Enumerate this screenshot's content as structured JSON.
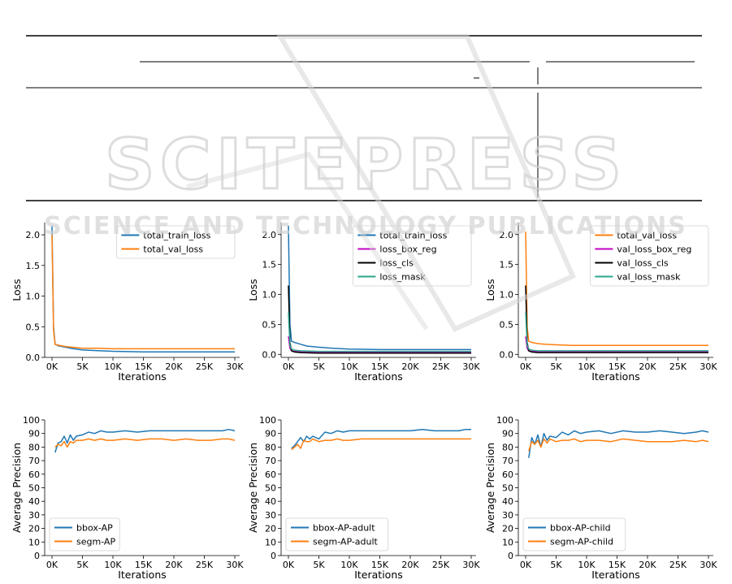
{
  "watermark": {
    "logo_text": "SCITEPRESS",
    "tagline": "SCIENCE AND TECHNOLOGY PUBLICATIONS"
  },
  "colors": {
    "blue": "#1f77b4",
    "orange": "#ff7f0e",
    "magenta": "#c000c0",
    "black": "#000000",
    "teal": "#2ca58d",
    "watermark": "#cfcfcf"
  },
  "chart_data": [
    {
      "type": "line",
      "xlabel": "Iterations",
      "ylabel": "Loss",
      "xlim": [
        -1200,
        30800
      ],
      "ylim": [
        0,
        2.2
      ],
      "xticks": [
        0,
        5000,
        10000,
        15000,
        20000,
        25000,
        30000
      ],
      "xtick_labels": [
        "0K",
        "5K",
        "10K",
        "15K",
        "20K",
        "25K",
        "30K"
      ],
      "yticks": [
        0.0,
        0.5,
        1.0,
        1.5,
        2.0
      ],
      "ytick_labels": [
        "0.0",
        "0.5",
        "1.0",
        "1.5",
        "2.0"
      ],
      "legend": "top-right",
      "series": [
        {
          "name": "total_train_loss",
          "color": "#1f77b4",
          "x": [
            0,
            250,
            500,
            1000,
            2000,
            3000,
            5000,
            7500,
            10000,
            15000,
            20000,
            25000,
            30000
          ],
          "y": [
            2.15,
            0.5,
            0.22,
            0.19,
            0.17,
            0.15,
            0.12,
            0.11,
            0.1,
            0.09,
            0.09,
            0.09,
            0.09
          ]
        },
        {
          "name": "total_val_loss",
          "color": "#ff7f0e",
          "x": [
            0,
            250,
            500,
            1000,
            2000,
            3000,
            5000,
            7500,
            10000,
            15000,
            20000,
            25000,
            30000
          ],
          "y": [
            2.0,
            0.45,
            0.21,
            0.2,
            0.18,
            0.17,
            0.15,
            0.15,
            0.14,
            0.14,
            0.14,
            0.14,
            0.14
          ]
        }
      ]
    },
    {
      "type": "line",
      "xlabel": "Iterations",
      "ylabel": "Loss",
      "xlim": [
        -1200,
        30800
      ],
      "ylim": [
        -0.05,
        2.2
      ],
      "xticks": [
        0,
        5000,
        10000,
        15000,
        20000,
        25000,
        30000
      ],
      "xtick_labels": [
        "0K",
        "5K",
        "10K",
        "15K",
        "20K",
        "25K",
        "30K"
      ],
      "yticks": [
        0.0,
        0.5,
        1.0,
        1.5,
        2.0
      ],
      "ytick_labels": [
        "0.0",
        "0.5",
        "1.0",
        "1.5",
        "2.0"
      ],
      "legend": "top-right",
      "series": [
        {
          "name": "total_train_loss",
          "color": "#1f77b4",
          "x": [
            0,
            250,
            500,
            1000,
            2000,
            3000,
            5000,
            7500,
            10000,
            15000,
            20000,
            25000,
            30000
          ],
          "y": [
            2.15,
            0.5,
            0.22,
            0.2,
            0.17,
            0.14,
            0.12,
            0.1,
            0.09,
            0.08,
            0.08,
            0.08,
            0.08
          ]
        },
        {
          "name": "loss_box_reg",
          "color": "#c000c0",
          "x": [
            0,
            250,
            500,
            1000,
            2000,
            5000,
            10000,
            20000,
            30000
          ],
          "y": [
            0.3,
            0.1,
            0.06,
            0.05,
            0.04,
            0.04,
            0.04,
            0.04,
            0.04
          ]
        },
        {
          "name": "loss_cls",
          "color": "#000000",
          "x": [
            0,
            250,
            500,
            1000,
            2000,
            5000,
            10000,
            20000,
            30000
          ],
          "y": [
            1.15,
            0.2,
            0.06,
            0.04,
            0.03,
            0.02,
            0.02,
            0.02,
            0.02
          ]
        },
        {
          "name": "loss_mask",
          "color": "#2ca58d",
          "x": [
            0,
            250,
            500,
            1000,
            2000,
            5000,
            10000,
            20000,
            30000
          ],
          "y": [
            0.7,
            0.15,
            0.09,
            0.07,
            0.06,
            0.05,
            0.05,
            0.05,
            0.05
          ]
        }
      ]
    },
    {
      "type": "line",
      "xlabel": "Iterations",
      "ylabel": "Loss",
      "xlim": [
        -1200,
        30800
      ],
      "ylim": [
        -0.05,
        2.2
      ],
      "xticks": [
        0,
        5000,
        10000,
        15000,
        20000,
        25000,
        30000
      ],
      "xtick_labels": [
        "0K",
        "5K",
        "10K",
        "15K",
        "20K",
        "25K",
        "30K"
      ],
      "yticks": [
        0.0,
        0.5,
        1.0,
        1.5,
        2.0
      ],
      "ytick_labels": [
        "0.0",
        "0.5",
        "1.0",
        "1.5",
        "2.0"
      ],
      "legend": "top-right",
      "series": [
        {
          "name": "total_val_loss",
          "color": "#ff7f0e",
          "x": [
            0,
            250,
            500,
            1000,
            2000,
            3000,
            5000,
            7500,
            10000,
            15000,
            20000,
            25000,
            30000
          ],
          "y": [
            2.05,
            0.45,
            0.22,
            0.2,
            0.18,
            0.17,
            0.16,
            0.15,
            0.15,
            0.15,
            0.15,
            0.15,
            0.15
          ]
        },
        {
          "name": "val_loss_box_reg",
          "color": "#c000c0",
          "x": [
            0,
            250,
            500,
            1000,
            2000,
            5000,
            10000,
            20000,
            30000
          ],
          "y": [
            0.3,
            0.1,
            0.06,
            0.05,
            0.05,
            0.05,
            0.05,
            0.05,
            0.05
          ]
        },
        {
          "name": "val_loss_cls",
          "color": "#000000",
          "x": [
            0,
            250,
            500,
            1000,
            2000,
            5000,
            10000,
            20000,
            30000
          ],
          "y": [
            1.15,
            0.2,
            0.06,
            0.04,
            0.03,
            0.03,
            0.03,
            0.03,
            0.03
          ]
        },
        {
          "name": "val_loss_mask",
          "color": "#2ca58d",
          "x": [
            0,
            250,
            500,
            1000,
            2000,
            5000,
            10000,
            20000,
            30000
          ],
          "y": [
            0.7,
            0.15,
            0.09,
            0.07,
            0.06,
            0.06,
            0.06,
            0.06,
            0.06
          ]
        }
      ]
    },
    {
      "type": "line",
      "xlabel": "Iterations",
      "ylabel": "Average Precision",
      "xlim": [
        -1200,
        30800
      ],
      "ylim": [
        0,
        100
      ],
      "xticks": [
        0,
        5000,
        10000,
        15000,
        20000,
        25000,
        30000
      ],
      "xtick_labels": [
        "0K",
        "5K",
        "10K",
        "15K",
        "20K",
        "25K",
        "30K"
      ],
      "yticks": [
        0,
        10,
        20,
        30,
        40,
        50,
        60,
        70,
        80,
        90,
        100
      ],
      "ytick_labels": [
        "0",
        "10",
        "20",
        "30",
        "40",
        "50",
        "60",
        "70",
        "80",
        "90",
        "100"
      ],
      "legend": "bottom-left",
      "series": [
        {
          "name": "bbox-AP",
          "color": "#1f77b4",
          "x": [
            500,
            1000,
            1500,
            2000,
            2500,
            3000,
            3500,
            4000,
            5000,
            6000,
            7000,
            8000,
            9000,
            10000,
            12000,
            14000,
            16000,
            18000,
            20000,
            22000,
            24000,
            26000,
            28000,
            29000,
            30000
          ],
          "y": [
            76,
            83,
            84,
            88,
            83,
            89,
            85,
            88,
            89,
            91,
            90,
            92,
            91,
            91,
            92,
            91,
            92,
            92,
            92,
            92,
            92,
            92,
            92,
            93,
            92
          ]
        },
        {
          "name": "segm-AP",
          "color": "#ff7f0e",
          "x": [
            500,
            1000,
            1500,
            2000,
            2500,
            3000,
            3500,
            4000,
            5000,
            6000,
            7000,
            8000,
            9000,
            10000,
            12000,
            14000,
            16000,
            18000,
            20000,
            22000,
            24000,
            26000,
            28000,
            29000,
            30000
          ],
          "y": [
            80,
            82,
            81,
            84,
            80,
            84,
            83,
            85,
            85,
            86,
            85,
            86,
            85,
            85,
            86,
            85,
            86,
            86,
            85,
            86,
            85,
            85,
            86,
            86,
            85
          ]
        }
      ]
    },
    {
      "type": "line",
      "xlabel": "Iterations",
      "ylabel": "Average Precision",
      "xlim": [
        -1200,
        30800
      ],
      "ylim": [
        0,
        100
      ],
      "xticks": [
        0,
        5000,
        10000,
        15000,
        20000,
        25000,
        30000
      ],
      "xtick_labels": [
        "0K",
        "5K",
        "10K",
        "15K",
        "20K",
        "25K",
        "30K"
      ],
      "yticks": [
        0,
        10,
        20,
        30,
        40,
        50,
        60,
        70,
        80,
        90,
        100
      ],
      "ytick_labels": [
        "0",
        "10",
        "20",
        "30",
        "40",
        "50",
        "60",
        "70",
        "80",
        "90",
        "100"
      ],
      "legend": "bottom-left",
      "series": [
        {
          "name": "bbox-AP-adult",
          "color": "#1f77b4",
          "x": [
            500,
            1000,
            1500,
            2000,
            2500,
            3000,
            3500,
            4000,
            5000,
            6000,
            7000,
            8000,
            9000,
            10000,
            12000,
            14000,
            16000,
            18000,
            20000,
            22000,
            24000,
            26000,
            28000,
            29000,
            30000
          ],
          "y": [
            79,
            81,
            84,
            87,
            84,
            88,
            86,
            88,
            86,
            91,
            90,
            92,
            91,
            92,
            92,
            92,
            92,
            92,
            92,
            93,
            92,
            92,
            92,
            93,
            93
          ]
        },
        {
          "name": "segm-AP-adult",
          "color": "#ff7f0e",
          "x": [
            500,
            1000,
            1500,
            2000,
            2500,
            3000,
            3500,
            4000,
            5000,
            6000,
            7000,
            8000,
            9000,
            10000,
            12000,
            14000,
            16000,
            18000,
            20000,
            22000,
            24000,
            26000,
            28000,
            29000,
            30000
          ],
          "y": [
            78,
            80,
            82,
            79,
            85,
            84,
            84,
            86,
            84,
            85,
            85,
            86,
            85,
            85,
            86,
            86,
            86,
            86,
            86,
            86,
            86,
            86,
            86,
            86,
            86
          ]
        }
      ]
    },
    {
      "type": "line",
      "xlabel": "Iterations",
      "ylabel": "Average Precision",
      "xlim": [
        -1200,
        30800
      ],
      "ylim": [
        0,
        100
      ],
      "xticks": [
        0,
        5000,
        10000,
        15000,
        20000,
        25000,
        30000
      ],
      "xtick_labels": [
        "0K",
        "5K",
        "10K",
        "15K",
        "20K",
        "25K",
        "30K"
      ],
      "yticks": [
        0,
        10,
        20,
        30,
        40,
        50,
        60,
        70,
        80,
        90,
        100
      ],
      "ytick_labels": [
        "0",
        "10",
        "20",
        "30",
        "40",
        "50",
        "60",
        "70",
        "80",
        "90",
        "100"
      ],
      "legend": "bottom-left",
      "series": [
        {
          "name": "bbox-AP-child",
          "color": "#1f77b4",
          "x": [
            500,
            1000,
            1500,
            2000,
            2500,
            3000,
            3500,
            4000,
            5000,
            6000,
            7000,
            8000,
            9000,
            10000,
            12000,
            14000,
            16000,
            18000,
            20000,
            22000,
            24000,
            26000,
            28000,
            29000,
            30000
          ],
          "y": [
            72,
            87,
            82,
            89,
            80,
            90,
            85,
            88,
            87,
            91,
            89,
            92,
            90,
            91,
            92,
            90,
            92,
            91,
            91,
            92,
            91,
            90,
            91,
            92,
            91
          ]
        },
        {
          "name": "segm-AP-child",
          "color": "#ff7f0e",
          "x": [
            500,
            1000,
            1500,
            2000,
            2500,
            3000,
            3500,
            4000,
            5000,
            6000,
            7000,
            8000,
            9000,
            10000,
            12000,
            14000,
            16000,
            18000,
            20000,
            22000,
            24000,
            26000,
            28000,
            29000,
            30000
          ],
          "y": [
            77,
            84,
            82,
            85,
            80,
            86,
            83,
            86,
            84,
            85,
            85,
            86,
            84,
            85,
            85,
            84,
            86,
            85,
            84,
            84,
            84,
            85,
            84,
            85,
            84
          ]
        }
      ]
    }
  ]
}
